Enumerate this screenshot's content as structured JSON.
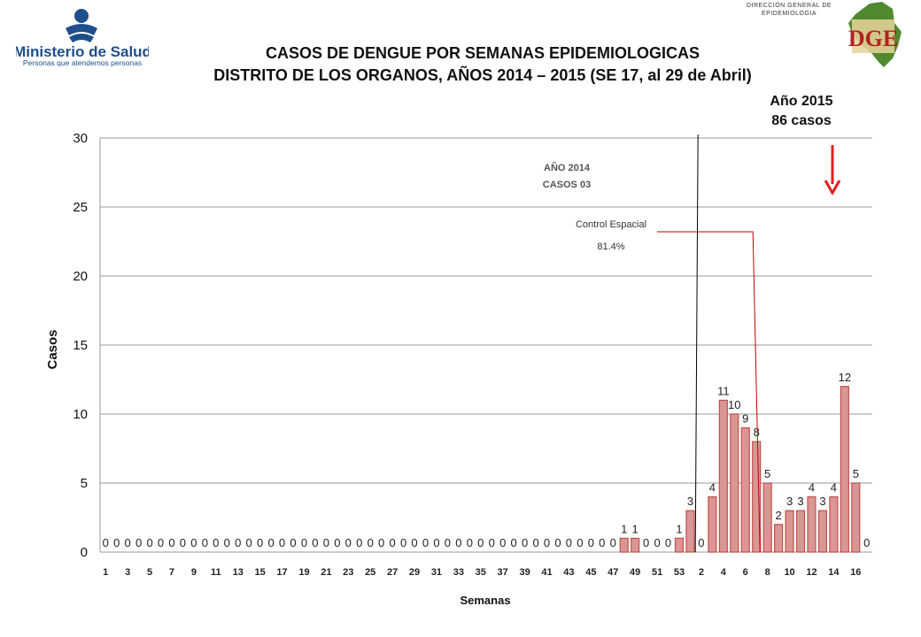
{
  "header": {
    "logo_left_name": "Ministerio de Salud",
    "logo_left_tagline": "Personas que atendemos personas",
    "logo_right_line1": "DIRECCIÓN GENERAL DE",
    "logo_right_line2": "EPIDEMIOLOGIA",
    "logo_right_letters": "DGE",
    "title_line1": "CASOS DE DENGUE POR SEMANAS EPIDEMIOLOGICAS",
    "title_line2": "DISTRITO DE LOS ORGANOS, AÑOS 2014 – 2015 (SE 17, al 29 de Abril)"
  },
  "annotations": {
    "year2015_line1": "Año 2015",
    "year2015_line2": "86 casos",
    "year2014_line1": "AÑO 2014",
    "year2014_line2": "CASOS 03",
    "control_line1": "Control Espacial",
    "control_line2": "81.4%"
  },
  "colors": {
    "bar_fill": "#d99694",
    "bar_stroke": "#c0504d",
    "arrow": "#e0201f",
    "control_line": "#c00000"
  },
  "chart_data": {
    "type": "bar",
    "title": "CASOS DE DENGUE POR SEMANAS EPIDEMIOLOGICAS",
    "xlabel": "Semanas",
    "ylabel": "Casos",
    "ylim": [
      0,
      30
    ],
    "yticks": [
      0,
      5,
      10,
      15,
      20,
      25,
      30
    ],
    "grid": true,
    "categories": [
      "1",
      "2",
      "3",
      "4",
      "5",
      "6",
      "7",
      "8",
      "9",
      "10",
      "11",
      "12",
      "13",
      "14",
      "15",
      "16",
      "17",
      "18",
      "19",
      "20",
      "21",
      "22",
      "23",
      "24",
      "25",
      "26",
      "27",
      "28",
      "29",
      "30",
      "31",
      "32",
      "33",
      "34",
      "35",
      "36",
      "37",
      "38",
      "39",
      "40",
      "41",
      "42",
      "43",
      "44",
      "45",
      "46",
      "47",
      "48",
      "49",
      "50",
      "51",
      "52",
      "53",
      "1",
      "2",
      "3",
      "4",
      "5",
      "6",
      "7",
      "8",
      "9",
      "10",
      "11",
      "12",
      "13",
      "14",
      "15",
      "16",
      "17"
    ],
    "values": [
      0,
      0,
      0,
      0,
      0,
      0,
      0,
      0,
      0,
      0,
      0,
      0,
      0,
      0,
      0,
      0,
      0,
      0,
      0,
      0,
      0,
      0,
      0,
      0,
      0,
      0,
      0,
      0,
      0,
      0,
      0,
      0,
      0,
      0,
      0,
      0,
      0,
      0,
      0,
      0,
      0,
      0,
      0,
      0,
      0,
      0,
      0,
      1,
      1,
      0,
      0,
      0,
      1,
      3,
      0,
      4,
      11,
      10,
      9,
      8,
      5,
      2,
      3,
      3,
      4,
      3,
      4,
      12,
      5,
      0
    ],
    "tick_labels": [
      "1",
      "3",
      "5",
      "7",
      "9",
      "11",
      "13",
      "15",
      "17",
      "19",
      "21",
      "23",
      "25",
      "27",
      "29",
      "31",
      "33",
      "35",
      "37",
      "39",
      "41",
      "43",
      "45",
      "47",
      "49",
      "51",
      "53",
      "2",
      "4",
      "6",
      "8",
      "10",
      "12",
      "14",
      "16"
    ]
  }
}
